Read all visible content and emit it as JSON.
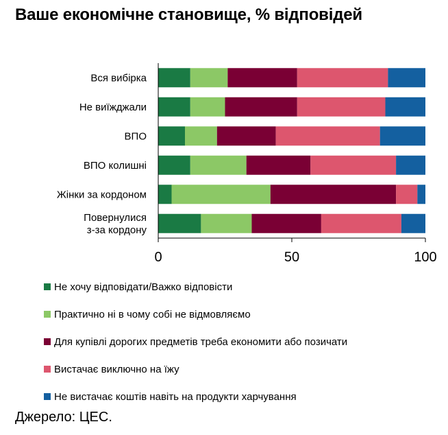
{
  "chart_data": {
    "type": "bar",
    "orientation": "horizontal",
    "stacked": true,
    "title": "Ваше економічне становище, % відповідей",
    "categories": [
      "Вся вибірка",
      "Не виїжджали",
      "ВПО",
      "ВПО колишні",
      "Жінки за кордоном",
      "Повернулися з-за кордону"
    ],
    "category_lines": [
      [
        "Вся вибірка"
      ],
      [
        "Не виїжджали"
      ],
      [
        "ВПО"
      ],
      [
        "ВПО колишні"
      ],
      [
        "Жінки за кордоном"
      ],
      [
        "Повернулися",
        "з-за кордону"
      ]
    ],
    "xlim": [
      0,
      100
    ],
    "xticks": [
      0,
      50,
      100
    ],
    "grid": false,
    "legend_position": "bottom",
    "series": [
      {
        "name": "Не хочу відповідати/Важко відповісти",
        "color": "#1a7a44",
        "values": [
          12,
          12,
          10,
          12,
          5,
          16
        ]
      },
      {
        "name": "Практично ні в чому собі не відмовляємо",
        "color": "#8cc866",
        "values": [
          14,
          13,
          12,
          21,
          37,
          19
        ]
      },
      {
        "name": "Для купівлі дорогих предметів треба економити або позичати",
        "color": "#7a0034",
        "values": [
          26,
          27,
          22,
          24,
          47,
          26
        ]
      },
      {
        "name": "Вистачає виключно на їжу",
        "color": "#dd566e",
        "values": [
          34,
          33,
          39,
          32,
          8,
          30
        ]
      },
      {
        "name": "Не вистачає коштів навіть на продукти харчування",
        "color": "#1460a0",
        "values": [
          14,
          15,
          17,
          11,
          3,
          9
        ]
      }
    ]
  },
  "source": "Джерело: ЦЕС."
}
